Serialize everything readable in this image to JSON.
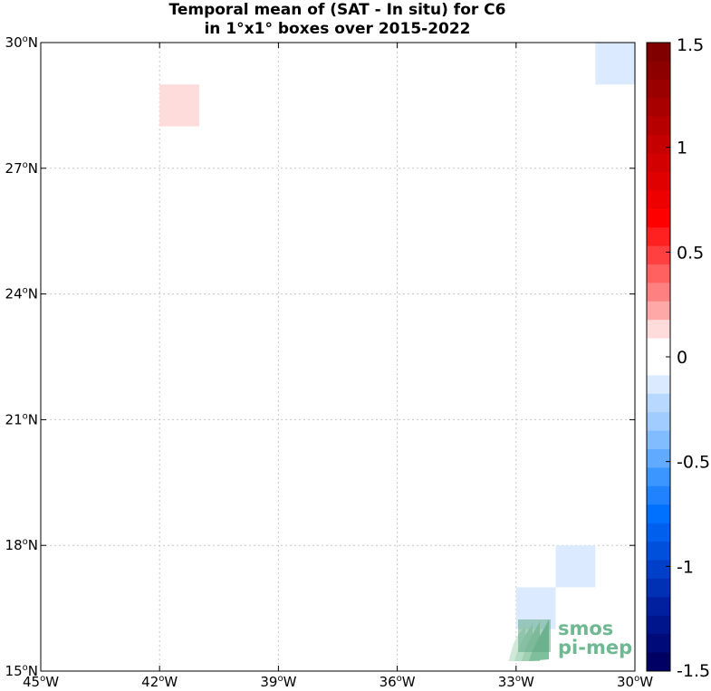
{
  "title": {
    "line1": "Temporal mean of (SAT - In situ) for C6",
    "line2": "in 1°x1° boxes over 2015-2022"
  },
  "map": {
    "lon_range": [
      -45,
      -30
    ],
    "lat_range": [
      15,
      30
    ],
    "grid": true,
    "x_ticks": [
      {
        "value": -45,
        "deg": "45",
        "hemi": "W"
      },
      {
        "value": -42,
        "deg": "42",
        "hemi": "W"
      },
      {
        "value": -39,
        "deg": "39",
        "hemi": "W"
      },
      {
        "value": -36,
        "deg": "36",
        "hemi": "W"
      },
      {
        "value": -33,
        "deg": "33",
        "hemi": "W"
      },
      {
        "value": -30,
        "deg": "30",
        "hemi": "W"
      }
    ],
    "y_ticks": [
      {
        "value": 30,
        "deg": "30",
        "hemi": "N"
      },
      {
        "value": 27,
        "deg": "27",
        "hemi": "N"
      },
      {
        "value": 24,
        "deg": "24",
        "hemi": "N"
      },
      {
        "value": 21,
        "deg": "21",
        "hemi": "N"
      },
      {
        "value": 18,
        "deg": "18",
        "hemi": "N"
      },
      {
        "value": 15,
        "deg": "15",
        "hemi": "N"
      }
    ],
    "degree_symbol": "o",
    "boxes": [
      {
        "lon": -42,
        "lat": 28,
        "value": 0.15,
        "color": "#ffdcdc"
      },
      {
        "lon": -31,
        "lat": 29,
        "value": -0.15,
        "color": "#dceaff"
      },
      {
        "lon": -32,
        "lat": 17,
        "value": -0.15,
        "color": "#dceaff"
      },
      {
        "lon": -33,
        "lat": 16,
        "value": -0.15,
        "color": "#dceaff"
      }
    ]
  },
  "colorbar": {
    "range": [
      -1.5,
      1.5
    ],
    "tick_labels": [
      {
        "value": 1.5,
        "label": "1.5"
      },
      {
        "value": 1,
        "label": "1"
      },
      {
        "value": 0.5,
        "label": "0.5"
      },
      {
        "value": 0,
        "label": "0"
      },
      {
        "value": -0.5,
        "label": "-0.5"
      },
      {
        "value": -1,
        "label": "-1"
      },
      {
        "value": -1.5,
        "label": "-1.5"
      }
    ],
    "colors_top_to_bottom": [
      "#800000",
      "#8c0000",
      "#9a0000",
      "#a80000",
      "#b60000",
      "#c40000",
      "#d20000",
      "#e00000",
      "#ee0000",
      "#ff0000",
      "#ff2020",
      "#ff4040",
      "#ff6060",
      "#ff8080",
      "#ffa8a8",
      "#ffdcdc",
      "#ffffff",
      "#ffffff",
      "#dceaff",
      "#b8d8ff",
      "#a0ccff",
      "#80bcff",
      "#60aaff",
      "#3c96ff",
      "#2082ff",
      "#0070ff",
      "#0060ee",
      "#0050dc",
      "#0040c8",
      "#0030b4",
      "#0020a0",
      "#00148c",
      "#000a78",
      "#000064"
    ]
  },
  "logo": {
    "line1": "smos",
    "line2": "pi-mep",
    "color": "#6fb892"
  }
}
